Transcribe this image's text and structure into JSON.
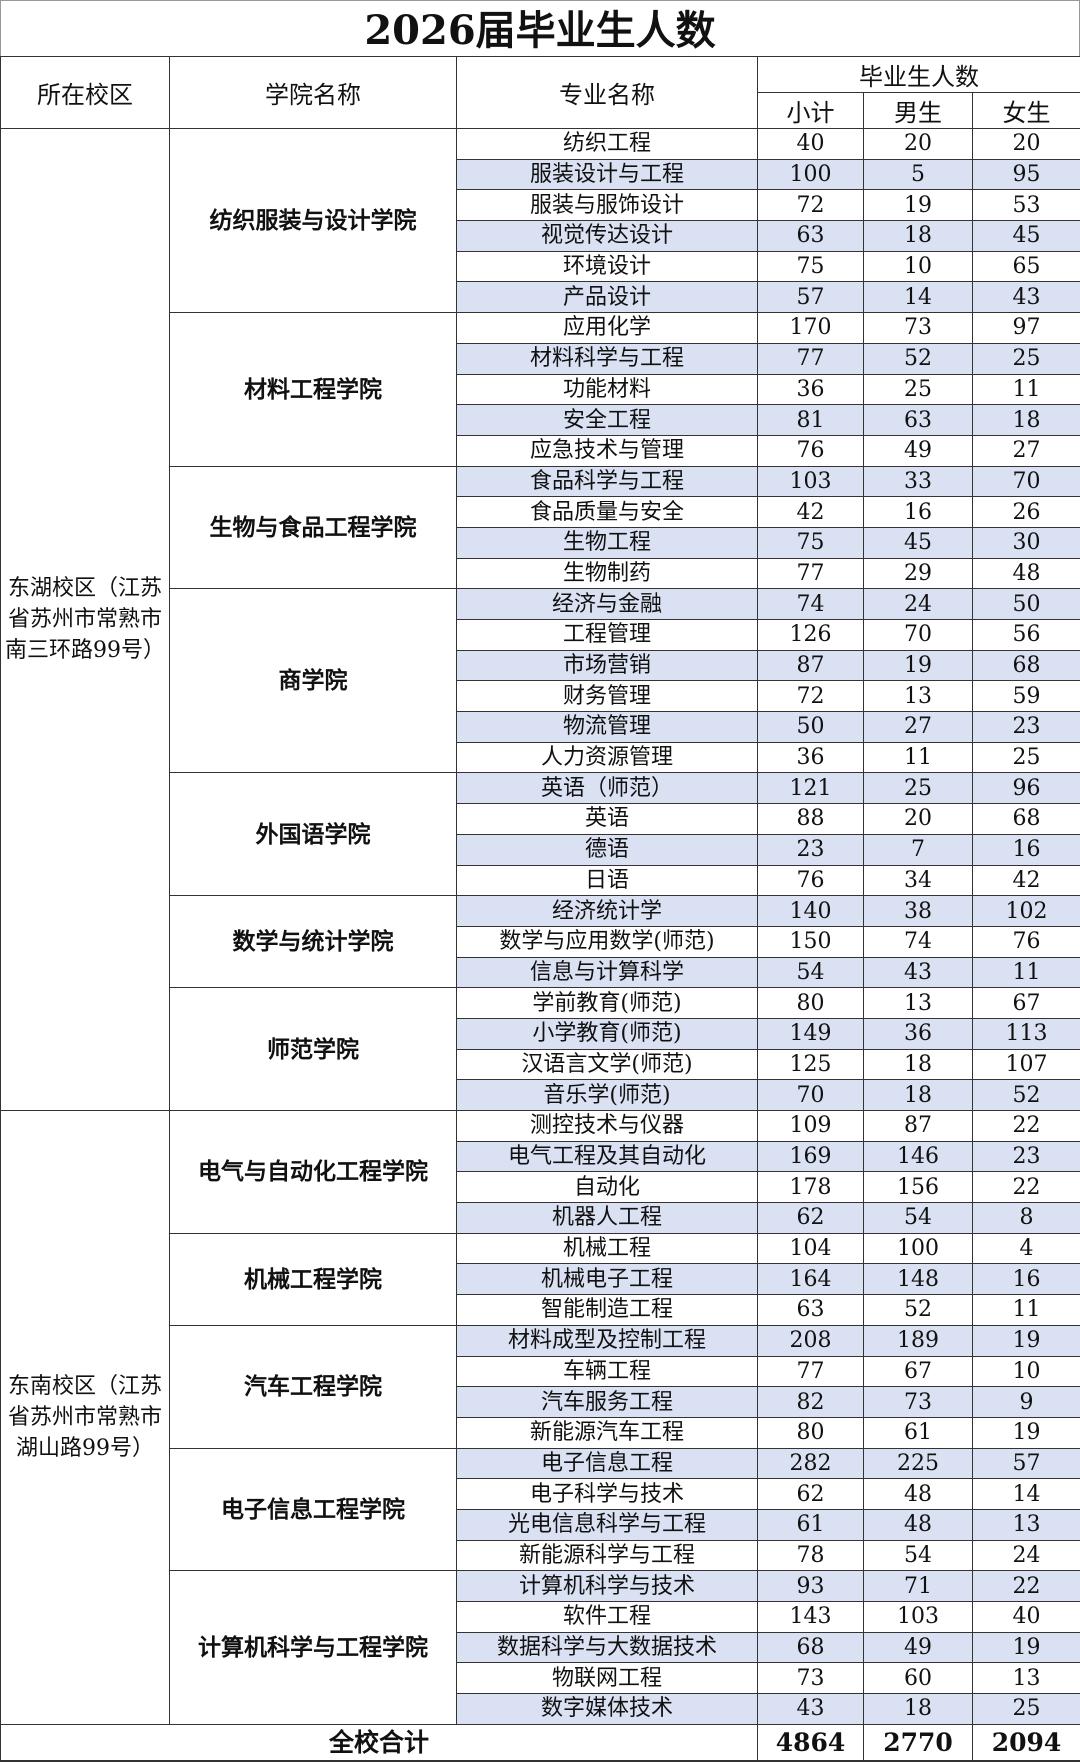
{
  "title": "2026届毕业生人数",
  "headers": {
    "campus": "所在校区",
    "college": "学院名称",
    "major": "专业名称",
    "count_group": "毕业生人数",
    "subtotal": "小计",
    "male": "男生",
    "female": "女生"
  },
  "stripe_color": "#d9e1f2",
  "campuses": [
    {
      "name": "东湖校区（江苏省苏州市常熟市南三环路99号）",
      "colleges": [
        {
          "name": "纺织服装与设计学院",
          "majors": [
            [
              "纺织工程",
              40,
              20,
              20
            ],
            [
              "服装设计与工程",
              100,
              5,
              95
            ],
            [
              "服装与服饰设计",
              72,
              19,
              53
            ],
            [
              "视觉传达设计",
              63,
              18,
              45
            ],
            [
              "环境设计",
              75,
              10,
              65
            ],
            [
              "产品设计",
              57,
              14,
              43
            ]
          ]
        },
        {
          "name": "材料工程学院",
          "majors": [
            [
              "应用化学",
              170,
              73,
              97
            ],
            [
              "材料科学与工程",
              77,
              52,
              25
            ],
            [
              "功能材料",
              36,
              25,
              11
            ],
            [
              "安全工程",
              81,
              63,
              18
            ],
            [
              "应急技术与管理",
              76,
              49,
              27
            ]
          ]
        },
        {
          "name": "生物与食品工程学院",
          "majors": [
            [
              "食品科学与工程",
              103,
              33,
              70
            ],
            [
              "食品质量与安全",
              42,
              16,
              26
            ],
            [
              "生物工程",
              75,
              45,
              30
            ],
            [
              "生物制药",
              77,
              29,
              48
            ]
          ]
        },
        {
          "name": "商学院",
          "majors": [
            [
              "经济与金融",
              74,
              24,
              50
            ],
            [
              "工程管理",
              126,
              70,
              56
            ],
            [
              "市场营销",
              87,
              19,
              68
            ],
            [
              "财务管理",
              72,
              13,
              59
            ],
            [
              "物流管理",
              50,
              27,
              23
            ],
            [
              "人力资源管理",
              36,
              11,
              25
            ]
          ]
        },
        {
          "name": "外国语学院",
          "majors": [
            [
              "英语（师范）",
              121,
              25,
              96
            ],
            [
              "英语",
              88,
              20,
              68
            ],
            [
              "德语",
              23,
              7,
              16
            ],
            [
              "日语",
              76,
              34,
              42
            ]
          ]
        },
        {
          "name": "数学与统计学院",
          "majors": [
            [
              "经济统计学",
              140,
              38,
              102
            ],
            [
              "数学与应用数学(师范)",
              150,
              74,
              76
            ],
            [
              "信息与计算科学",
              54,
              43,
              11
            ]
          ]
        },
        {
          "name": "师范学院",
          "majors": [
            [
              "学前教育(师范)",
              80,
              13,
              67
            ],
            [
              "小学教育(师范)",
              149,
              36,
              113
            ],
            [
              "汉语言文学(师范)",
              125,
              18,
              107
            ],
            [
              "音乐学(师范)",
              70,
              18,
              52
            ]
          ]
        }
      ]
    },
    {
      "name": "东南校区（江苏省苏州市常熟市湖山路99号）",
      "colleges": [
        {
          "name": "电气与自动化工程学院",
          "majors": [
            [
              "测控技术与仪器",
              109,
              87,
              22
            ],
            [
              "电气工程及其自动化",
              169,
              146,
              23
            ],
            [
              "自动化",
              178,
              156,
              22
            ],
            [
              "机器人工程",
              62,
              54,
              8
            ]
          ]
        },
        {
          "name": "机械工程学院",
          "majors": [
            [
              "机械工程",
              104,
              100,
              4
            ],
            [
              "机械电子工程",
              164,
              148,
              16
            ],
            [
              "智能制造工程",
              63,
              52,
              11
            ]
          ]
        },
        {
          "name": "汽车工程学院",
          "majors": [
            [
              "材料成型及控制工程",
              208,
              189,
              19
            ],
            [
              "车辆工程",
              77,
              67,
              10
            ],
            [
              "汽车服务工程",
              82,
              73,
              9
            ],
            [
              "新能源汽车工程",
              80,
              61,
              19
            ]
          ]
        },
        {
          "name": "电子信息工程学院",
          "majors": [
            [
              "电子信息工程",
              282,
              225,
              57
            ],
            [
              "电子科学与技术",
              62,
              48,
              14
            ],
            [
              "光电信息科学与工程",
              61,
              48,
              13
            ],
            [
              "新能源科学与工程",
              78,
              54,
              24
            ]
          ]
        },
        {
          "name": "计算机科学与工程学院",
          "majors": [
            [
              "计算机科学与技术",
              93,
              71,
              22
            ],
            [
              "软件工程",
              143,
              103,
              40
            ],
            [
              "数据科学与大数据技术",
              68,
              49,
              19
            ],
            [
              "物联网工程",
              73,
              60,
              13
            ],
            [
              "数字媒体技术",
              43,
              18,
              25
            ]
          ]
        }
      ]
    }
  ],
  "total": {
    "label": "全校合计",
    "subtotal": 4864,
    "male": 2770,
    "female": 2094
  }
}
